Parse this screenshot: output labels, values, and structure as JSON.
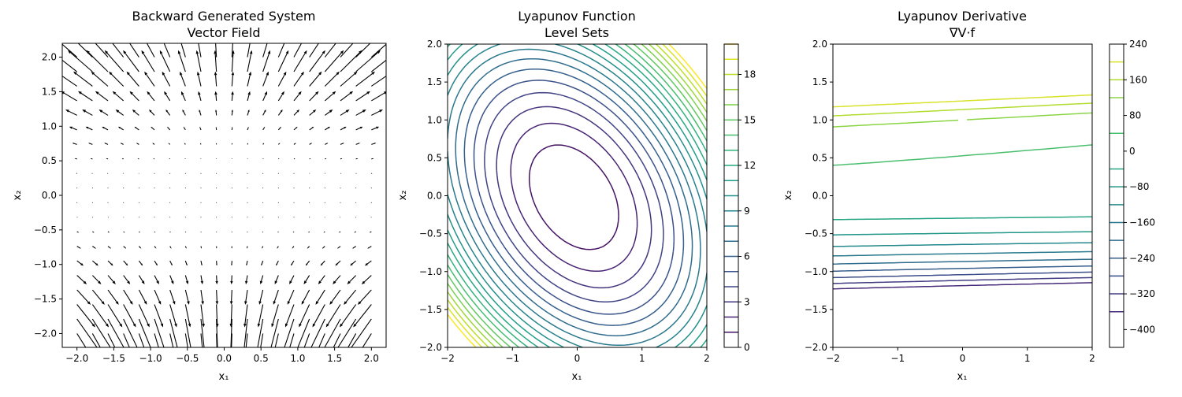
{
  "chart_data": [
    {
      "type": "quiver",
      "title": "Backward Generated System\nVector Field",
      "xlabel": "x₁",
      "ylabel": "x₂",
      "xlim": [
        -2.2,
        2.2
      ],
      "ylim": [
        -2.2,
        2.2
      ],
      "xticks": [
        "−2.0",
        "−1.5",
        "−1.0",
        "−0.5",
        "0.0",
        "0.5",
        "1.0",
        "1.5",
        "2.0"
      ],
      "yticks": [
        "−2.0",
        "−1.5",
        "−1.0",
        "−0.5",
        "0.0",
        "0.5",
        "1.0",
        "1.5",
        "2.0"
      ],
      "grid": {
        "n": 20,
        "from": -2.0,
        "to": 2.0
      },
      "arrow_color": "#000000"
    },
    {
      "type": "contour",
      "title": "Lyapunov Function\nLevel Sets",
      "xlabel": "x₁",
      "ylabel": "x₂",
      "xlim": [
        -2,
        2
      ],
      "ylim": [
        -2,
        2
      ],
      "xticks": [
        "−2",
        "−1",
        "0",
        "1",
        "2"
      ],
      "yticks": [
        "−2.0",
        "−1.5",
        "−1.0",
        "−0.5",
        "0.0",
        "0.5",
        "1.0",
        "1.5",
        "2.0"
      ],
      "levels": [
        1,
        2,
        3,
        4,
        5,
        6,
        7,
        8,
        9,
        10,
        11,
        12,
        13,
        14,
        15,
        16,
        17,
        18,
        19,
        20
      ],
      "colorbar": {
        "min": 0,
        "max": 20,
        "ticks": [
          "0",
          "3",
          "6",
          "9",
          "12",
          "15",
          "18"
        ],
        "tick_values": [
          0,
          3,
          6,
          9,
          12,
          15,
          18
        ]
      }
    },
    {
      "type": "contour",
      "title": "Lyapunov Derivative\n∇V·f",
      "xlabel": "x₁",
      "ylabel": "x₂",
      "xlim": [
        -2,
        2
      ],
      "ylim": [
        -2,
        2
      ],
      "xticks": [
        "−2",
        "−1",
        "0",
        "1",
        "2"
      ],
      "yticks": [
        "−2.0",
        "−1.5",
        "−1.0",
        "−0.5",
        "0.0",
        "0.5",
        "1.0",
        "1.5",
        "2.0"
      ],
      "levels": [
        200,
        160,
        120,
        40,
        -40,
        -80,
        -120,
        -160,
        -200,
        -240,
        -280,
        -320,
        -360
      ],
      "colorbar": {
        "min": -440,
        "max": 240,
        "ticks": [
          "240",
          "160",
          "80",
          "0",
          "−80",
          "−160",
          "−240",
          "−320",
          "−400"
        ],
        "tick_values": [
          240,
          160,
          80,
          0,
          -80,
          -160,
          -240,
          -320,
          -400
        ]
      }
    }
  ]
}
